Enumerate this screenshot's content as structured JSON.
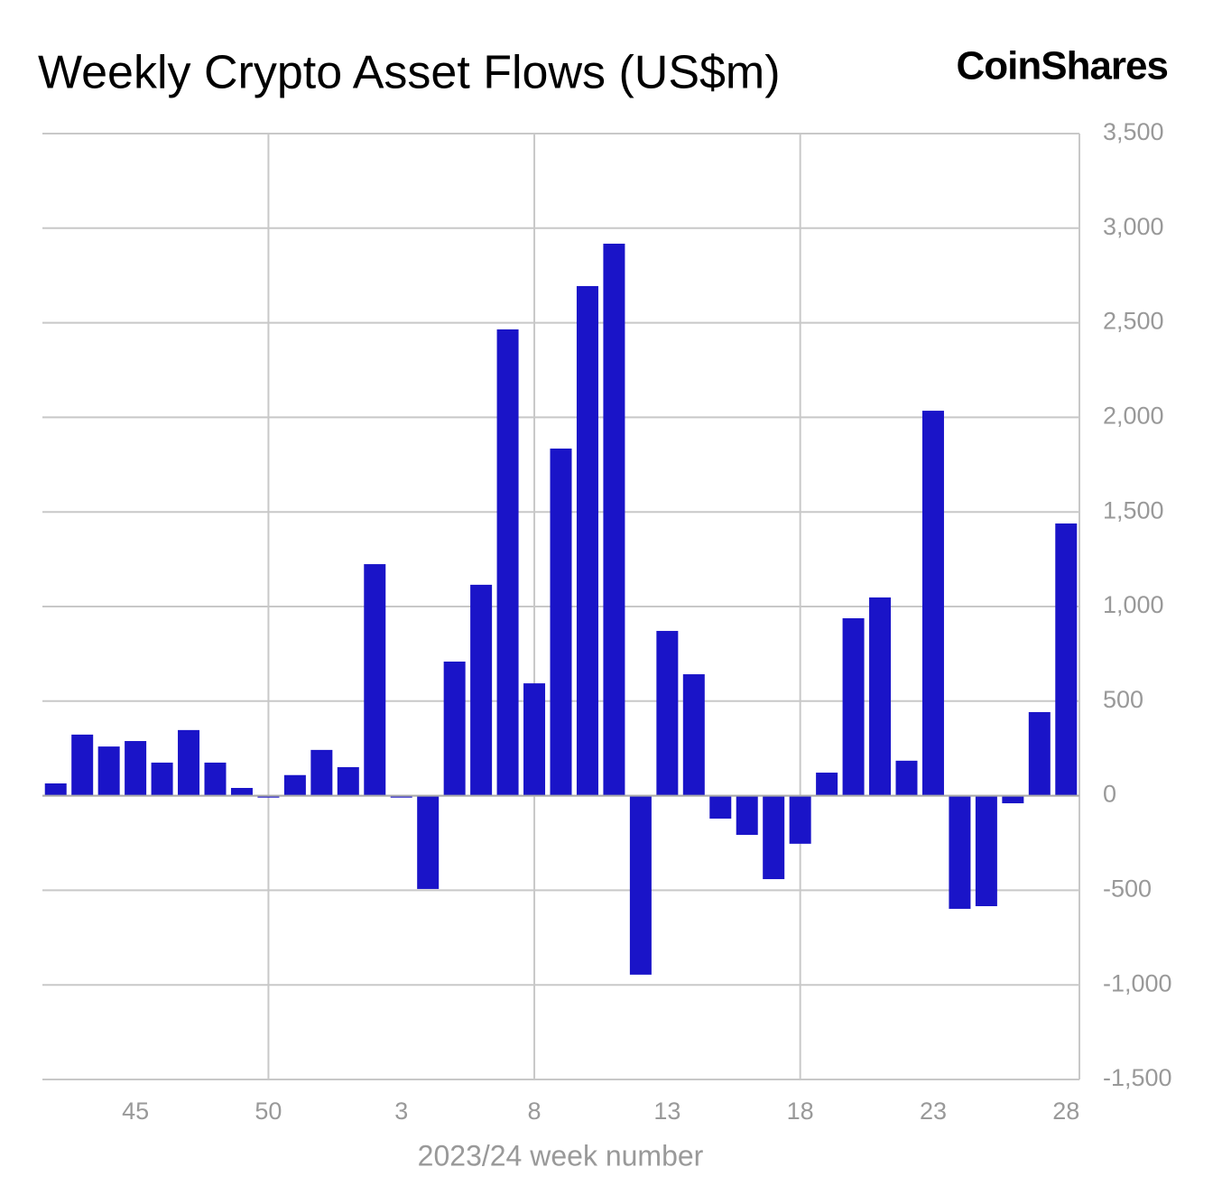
{
  "chart_data": {
    "type": "bar",
    "title": "Weekly Crypto Asset Flows (US$m)",
    "logo": "CoinShares",
    "x_label": "2023/24 week number",
    "categories": [
      null,
      null,
      null,
      "45",
      null,
      null,
      null,
      null,
      "50",
      null,
      null,
      null,
      null,
      "3",
      null,
      null,
      null,
      null,
      "8",
      null,
      null,
      null,
      null,
      "13",
      null,
      null,
      null,
      null,
      "18",
      null,
      null,
      null,
      null,
      "23",
      null,
      null,
      null,
      null,
      "28"
    ],
    "values": [
      65,
      323,
      260,
      289,
      175,
      347,
      175,
      41,
      -10,
      109,
      242,
      151,
      1224,
      -10,
      -493,
      709,
      1115,
      2465,
      594,
      1835,
      2694,
      2918,
      -946,
      871,
      642,
      -121,
      -207,
      -441,
      -254,
      122,
      938,
      1048,
      185,
      2035,
      -598,
      -584,
      -40,
      442,
      1439
    ],
    "color": "#1a14c8",
    "ylim": [
      -1500,
      3500
    ],
    "yticks": [
      {
        "value": -1500,
        "label": "-1,500"
      },
      {
        "value": -1000,
        "label": "-1,000"
      },
      -500,
      0,
      500,
      {
        "value": 1000,
        "label": "1,000"
      },
      {
        "value": 1500,
        "label": "1,500"
      },
      {
        "value": 2000,
        "label": "2,000"
      },
      {
        "value": 2500,
        "label": "2,500"
      },
      {
        "value": 3000,
        "label": "3,000"
      },
      {
        "value": 3500,
        "label": "3,500"
      }
    ],
    "grid": true
  }
}
